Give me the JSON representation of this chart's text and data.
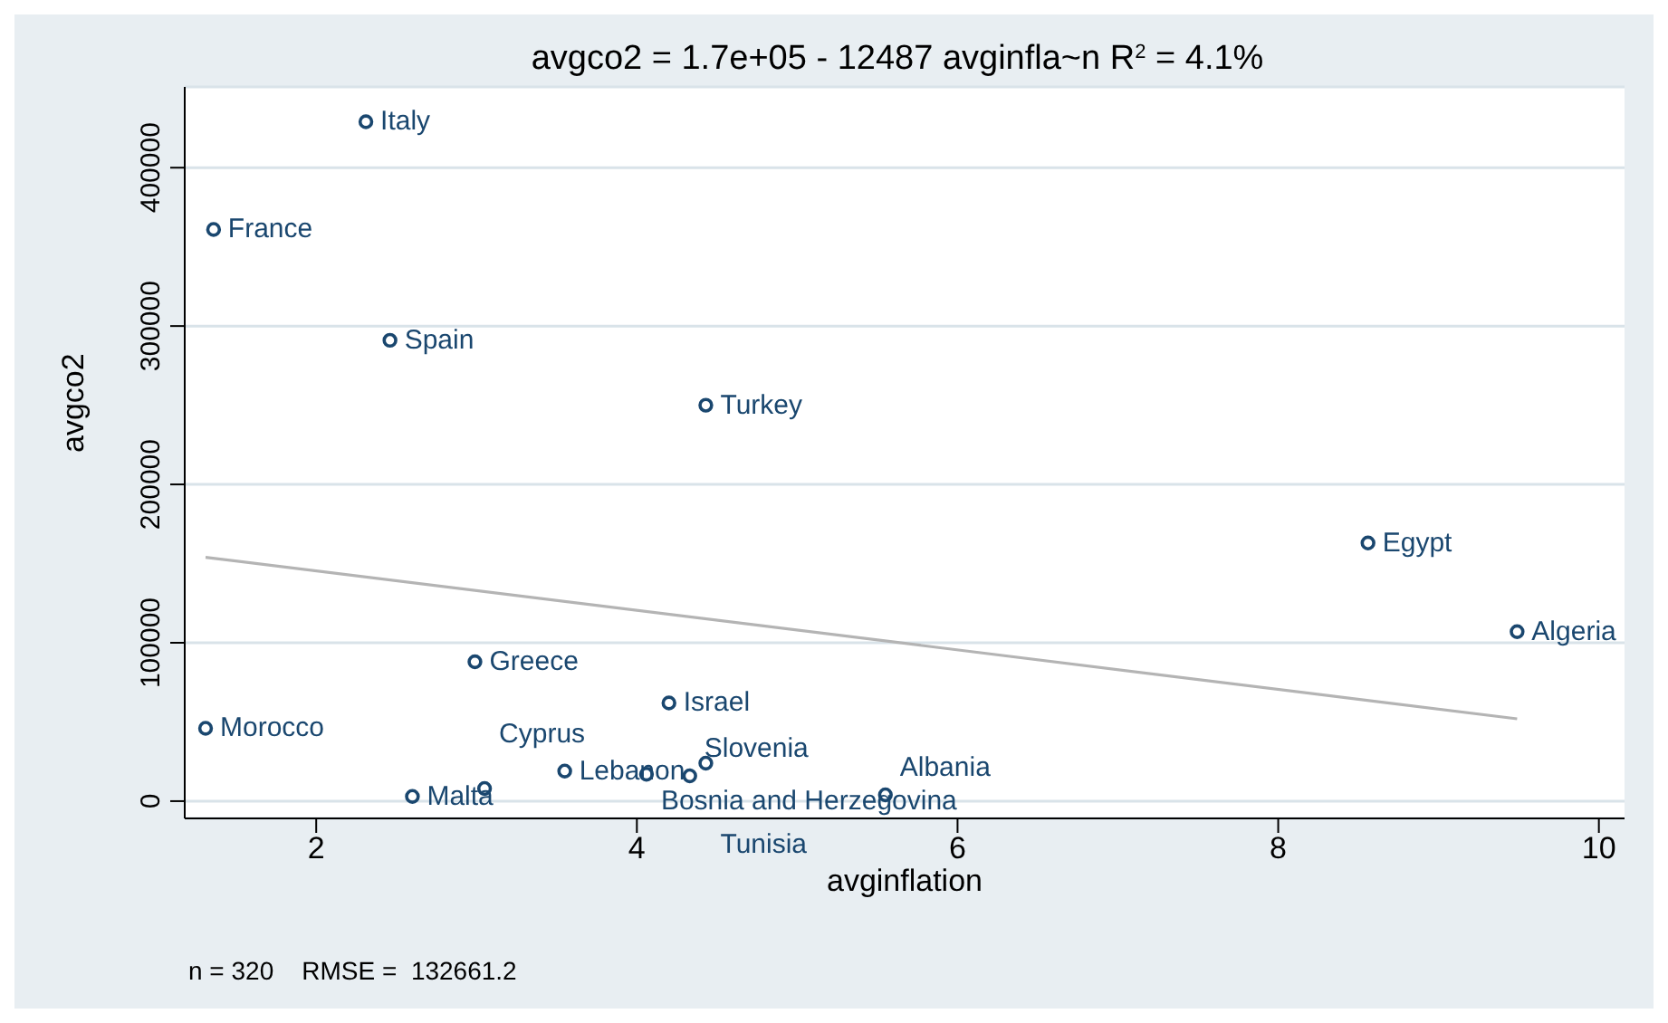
{
  "chart_data": {
    "type": "scatter",
    "title": "avgco2 = 1.7e+05 - 12487 avginfla~n     R$^{2}$ = 4.1%",
    "xlabel": "avginflation",
    "ylabel": "avgco2",
    "annotations": [
      "n = 320    RMSE =  132661.2"
    ],
    "xlim": [
      1.18,
      10.16
    ],
    "xticks": [
      2,
      4,
      6,
      8,
      10
    ],
    "ylim": [
      -10900,
      451000
    ],
    "yticks": [
      0,
      100000,
      200000,
      300000,
      400000
    ],
    "grid": "y",
    "marker": "circle",
    "legend": false,
    "series": [
      {
        "color": "#1a476f",
        "x": [
          2.31,
          1.36,
          2.46,
          4.43,
          8.56,
          9.49,
          2.99,
          4.2,
          1.31,
          3.55,
          4.06,
          4.33,
          4.43,
          2.6,
          3.05,
          5.55
        ],
        "values": [
          429000,
          361000,
          291000,
          250000,
          163000,
          107000,
          88000,
          62000,
          46000,
          19000,
          17000,
          16000,
          24000,
          3000,
          8000,
          4000
        ],
        "value_labels": [
          "Italy",
          "France",
          "Spain",
          "Turkey",
          "Egypt",
          "Algeria",
          "Greece",
          "Israel",
          "Morocco",
          "Lebanon",
          "Bosnia and Herzegovina",
          "Slovenia",
          "Tunisia",
          "Malta",
          "Cyprus",
          "Albania"
        ]
      },
      {
        "type": "line",
        "color": "#b4b4b4",
        "x": [
          1.31,
          9.49
        ],
        "values": [
          154000,
          52000
        ],
        "line_style": "solid",
        "marker": "none"
      }
    ]
  }
}
